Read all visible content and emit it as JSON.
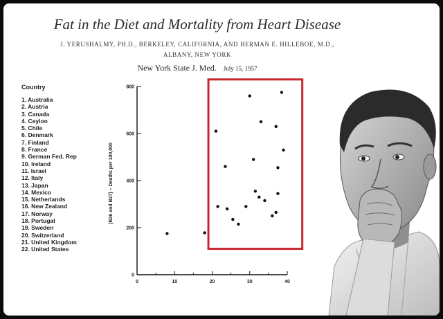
{
  "header": {
    "title": "Fat in the Diet and Mortality from Heart Disease",
    "authors_line1": "J. YERUSHALMY, PH.D., BERKELEY, CALIFORNIA, AND HERMAN E. HILLEBOE, M.D.,",
    "authors_line2": "ALBANY, NEW YORK",
    "journal": "New York State J. Med.",
    "date": "July 15, 1957"
  },
  "legend": {
    "heading": "Country",
    "countries": [
      "1. Australia",
      "2. Austria",
      "3. Canada",
      "4. Ceylon",
      "5. Chile",
      "6. Denmark",
      "7. Finland",
      "8. France",
      "9. German Fed. Rep",
      "10. Ireland",
      "11. Israel",
      "12. Italy",
      "13. Japan",
      "14. Mexico",
      "15. Netherlands",
      "16. New Zealand",
      "17. Norway",
      "18. Portugal",
      "19. Sweden",
      "20. Switzerland",
      "21. United Kingdom",
      "22. United States"
    ]
  },
  "colors": {
    "highlight": "#c8252e",
    "points": "#111111",
    "background": "#ffffff",
    "frame": "#0b0b0b"
  },
  "chart_data": {
    "type": "scatter",
    "title": "",
    "xlabel": "",
    "ylabel": "(B26 and B27) – Deaths per 100,000",
    "xlim": [
      0,
      40
    ],
    "ylim": [
      0,
      800
    ],
    "xticks": [
      "0",
      "10",
      "20",
      "30",
      "40"
    ],
    "yticks": [
      "0",
      "200",
      "400",
      "600",
      "800"
    ],
    "highlight_region": {
      "x_from": 19,
      "x_to": 44,
      "y_from": 110,
      "y_to": 830
    },
    "points": [
      {
        "x": 8,
        "y": 175
      },
      {
        "x": 18,
        "y": 178
      },
      {
        "x": 21,
        "y": 610
      },
      {
        "x": 21.5,
        "y": 290
      },
      {
        "x": 23.5,
        "y": 460
      },
      {
        "x": 24,
        "y": 280
      },
      {
        "x": 25.5,
        "y": 235
      },
      {
        "x": 27,
        "y": 215
      },
      {
        "x": 29,
        "y": 290
      },
      {
        "x": 30,
        "y": 760
      },
      {
        "x": 31,
        "y": 490
      },
      {
        "x": 31.5,
        "y": 355
      },
      {
        "x": 32.5,
        "y": 330
      },
      {
        "x": 33,
        "y": 650
      },
      {
        "x": 34,
        "y": 315
      },
      {
        "x": 36,
        "y": 250
      },
      {
        "x": 37,
        "y": 265
      },
      {
        "x": 37,
        "y": 630
      },
      {
        "x": 37.5,
        "y": 455
      },
      {
        "x": 37.5,
        "y": 345
      },
      {
        "x": 38.5,
        "y": 775
      },
      {
        "x": 39,
        "y": 530
      }
    ]
  }
}
